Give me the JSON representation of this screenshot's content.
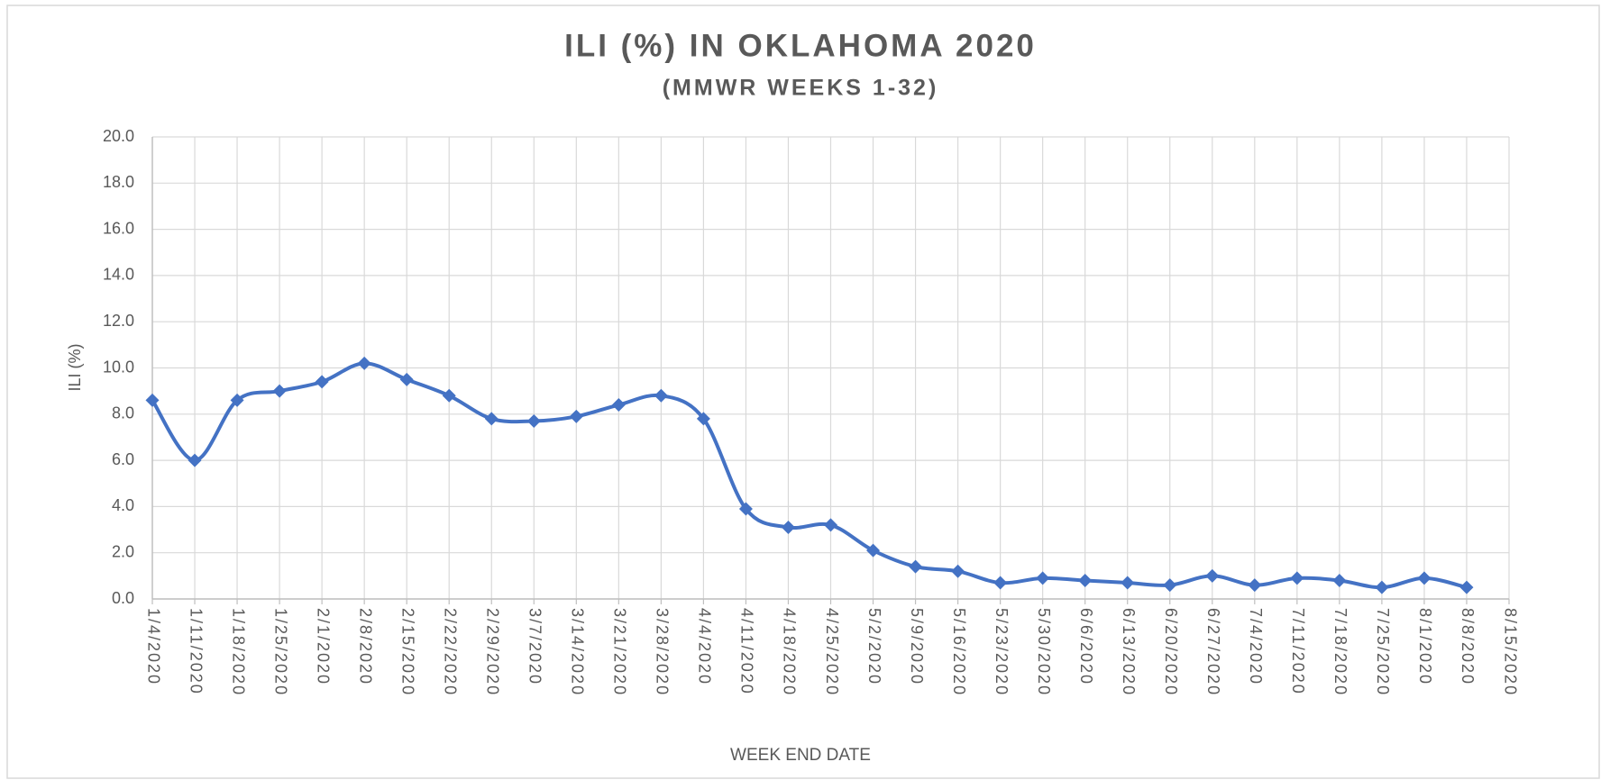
{
  "chart_data": {
    "type": "line",
    "title": "ILI (%) IN OKLAHOMA 2020",
    "subtitle": "(MMWR WEEKS 1-32)",
    "x_label": "WEEK END DATE",
    "y_label": "ILI (%)",
    "categories": [
      "1/4/2020",
      "1/11/2020",
      "1/18/2020",
      "1/25/2020",
      "2/1/2020",
      "2/8/2020",
      "2/15/2020",
      "2/22/2020",
      "2/29/2020",
      "3/7/2020",
      "3/14/2020",
      "3/21/2020",
      "3/28/2020",
      "4/4/2020",
      "4/11/2020",
      "4/18/2020",
      "4/25/2020",
      "5/2/2020",
      "5/9/2020",
      "5/16/2020",
      "5/23/2020",
      "5/30/2020",
      "6/6/2020",
      "6/13/2020",
      "6/20/2020",
      "6/27/2020",
      "7/4/2020",
      "7/11/2020",
      "7/18/2020",
      "7/25/2020",
      "8/1/2020",
      "8/8/2020",
      "8/15/2020"
    ],
    "values": [
      8.6,
      6.0,
      8.6,
      9.0,
      9.4,
      10.2,
      9.5,
      8.8,
      7.8,
      7.7,
      7.9,
      8.4,
      8.8,
      7.8,
      3.9,
      3.1,
      3.2,
      2.1,
      1.4,
      1.2,
      0.7,
      0.9,
      0.8,
      0.7,
      0.6,
      1.0,
      0.6,
      0.9,
      0.8,
      0.5,
      0.9,
      0.5,
      null
    ],
    "color": "#4472c4",
    "ylim": [
      0,
      20
    ],
    "yticks": [
      {
        "value": 0,
        "label": "0.0"
      },
      {
        "value": 2,
        "label": "2.0"
      },
      {
        "value": 4,
        "label": "4.0"
      },
      {
        "value": 6,
        "label": "6.0"
      },
      {
        "value": 8,
        "label": "8.0"
      },
      {
        "value": 10,
        "label": "10.0"
      },
      {
        "value": 12,
        "label": "12.0"
      },
      {
        "value": 14,
        "label": "14.0"
      },
      {
        "value": 16,
        "label": "16.0"
      },
      {
        "value": 18,
        "label": "18.0"
      },
      {
        "value": 20,
        "label": "20.0"
      }
    ],
    "grid": true,
    "smooth": true,
    "marker": "diamond"
  }
}
